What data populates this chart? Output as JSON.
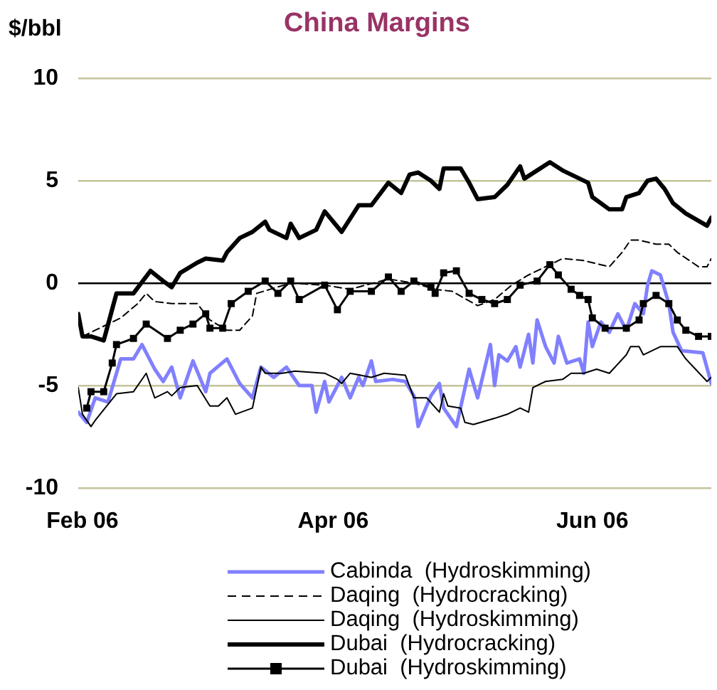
{
  "chart_data": {
    "type": "line",
    "title": "China Margins",
    "ylabel": "$/bbl",
    "xlim": [
      "2006-01-31",
      "2006-06-29"
    ],
    "xticks": [
      {
        "value": "2006-02-01",
        "label": "Feb 06"
      },
      {
        "value": "2006-04-01",
        "label": "Apr 06"
      },
      {
        "value": "2006-06-01",
        "label": "Jun 06"
      }
    ],
    "ylim": [
      -10,
      10
    ],
    "yticks": [
      -10,
      -5,
      0,
      5,
      10
    ],
    "grid": "y",
    "legend": "bottom",
    "series": [
      {
        "name": "Cabinda  (Hydroskimming)",
        "color": "#8080ff",
        "marker": "none",
        "line_style": "solid",
        "x": [
          "2006-01-31",
          "2006-02-02",
          "2006-02-04",
          "2006-02-07",
          "2006-02-10",
          "2006-02-13",
          "2006-02-15",
          "2006-02-18",
          "2006-02-20",
          "2006-02-22",
          "2006-02-24",
          "2006-02-27",
          "2006-03-02",
          "2006-03-03",
          "2006-03-07",
          "2006-03-10",
          "2006-03-13",
          "2006-03-15",
          "2006-03-18",
          "2006-03-21",
          "2006-03-24",
          "2006-03-27",
          "2006-03-28",
          "2006-03-30",
          "2006-03-31",
          "2006-04-03",
          "2006-04-05",
          "2006-04-07",
          "2006-04-08",
          "2006-04-10",
          "2006-04-11",
          "2006-04-15",
          "2006-04-18",
          "2006-04-20",
          "2006-04-21",
          "2006-04-24",
          "2006-04-26",
          "2006-04-27",
          "2006-04-30",
          "2006-05-03",
          "2006-05-05",
          "2006-05-08",
          "2006-05-09",
          "2006-05-10",
          "2006-05-12",
          "2006-05-14",
          "2006-05-15",
          "2006-05-17",
          "2006-05-18",
          "2006-05-19",
          "2006-05-21",
          "2006-05-23",
          "2006-05-24",
          "2006-05-26",
          "2006-05-29",
          "2006-05-30",
          "2006-05-31",
          "2006-06-01",
          "2006-06-03",
          "2006-06-05",
          "2006-06-07",
          "2006-06-09",
          "2006-06-11",
          "2006-06-13",
          "2006-06-14",
          "2006-06-15",
          "2006-06-17",
          "2006-06-19",
          "2006-06-20",
          "2006-06-22",
          "2006-06-27",
          "2006-06-29"
        ],
        "values": [
          -6.3,
          -6.8,
          -5.6,
          -5.8,
          -3.7,
          -3.7,
          -3.0,
          -4.2,
          -4.8,
          -4.1,
          -5.6,
          -3.8,
          -5.3,
          -4.4,
          -3.7,
          -4.9,
          -5.6,
          -4.1,
          -4.6,
          -4.1,
          -5.0,
          -5.0,
          -6.3,
          -4.8,
          -5.8,
          -4.6,
          -5.6,
          -4.6,
          -5.0,
          -3.8,
          -4.8,
          -4.7,
          -4.8,
          -5.5,
          -7.0,
          -5.5,
          -4.9,
          -6.1,
          -7.0,
          -4.2,
          -5.6,
          -3.0,
          -5.0,
          -3.5,
          -3.8,
          -3.1,
          -4.1,
          -2.5,
          -3.9,
          -1.8,
          -3.1,
          -3.9,
          -2.6,
          -3.9,
          -3.7,
          -4.4,
          -1.9,
          -3.1,
          -1.9,
          -2.4,
          -1.5,
          -2.3,
          -1.0,
          -1.5,
          -0.1,
          0.6,
          0.4,
          -1.0,
          -2.4,
          -3.3,
          -3.4,
          -4.9
        ]
      },
      {
        "name": "Daqing  (Hydrocracking)",
        "color": "#000000",
        "marker": "none",
        "line_style": "dashed",
        "x": [
          "2006-02-01",
          "2006-02-10",
          "2006-02-14",
          "2006-02-16",
          "2006-02-18",
          "2006-02-22",
          "2006-02-28",
          "2006-03-03",
          "2006-03-07",
          "2006-03-10",
          "2006-03-13",
          "2006-03-14",
          "2006-03-22",
          "2006-03-30",
          "2006-04-05",
          "2006-04-14",
          "2006-04-20",
          "2006-04-25",
          "2006-04-29",
          "2006-05-05",
          "2006-05-09",
          "2006-05-13",
          "2006-05-17",
          "2006-05-21",
          "2006-05-25",
          "2006-05-30",
          "2006-06-01",
          "2006-06-05",
          "2006-06-08",
          "2006-06-10",
          "2006-06-12",
          "2006-06-16",
          "2006-06-19",
          "2006-06-21",
          "2006-06-26",
          "2006-06-28",
          "2006-06-29"
        ],
        "values": [
          -2.6,
          -1.7,
          -1.0,
          -0.5,
          -0.9,
          -1.0,
          -1.0,
          -1.8,
          -2.3,
          -2.3,
          -1.6,
          -0.5,
          0.0,
          -0.1,
          -0.3,
          0.2,
          0.0,
          -0.3,
          -0.4,
          -1.1,
          -0.8,
          -0.1,
          0.4,
          0.8,
          1.2,
          1.1,
          1.0,
          0.8,
          1.5,
          2.1,
          2.1,
          1.9,
          1.9,
          1.5,
          0.8,
          0.8,
          1.2
        ]
      },
      {
        "name": "Daqing  (Hydroskimming)",
        "color": "#000000",
        "marker": "none",
        "line_style": "solid",
        "x": [
          "2006-01-31",
          "2006-02-01",
          "2006-02-03",
          "2006-02-04",
          "2006-02-09",
          "2006-02-13",
          "2006-02-16",
          "2006-02-18",
          "2006-02-21",
          "2006-02-22",
          "2006-02-24",
          "2006-02-28",
          "2006-03-03",
          "2006-03-05",
          "2006-03-07",
          "2006-03-09",
          "2006-03-13",
          "2006-03-15",
          "2006-03-16",
          "2006-03-20",
          "2006-03-23",
          "2006-03-30",
          "2006-04-02",
          "2006-04-03",
          "2006-04-05",
          "2006-04-10",
          "2006-04-13",
          "2006-04-18",
          "2006-04-20",
          "2006-04-23",
          "2006-04-26",
          "2006-04-27",
          "2006-04-28",
          "2006-05-01",
          "2006-05-02",
          "2006-05-04",
          "2006-05-09",
          "2006-05-12",
          "2006-05-15",
          "2006-05-17",
          "2006-05-18",
          "2006-05-21",
          "2006-05-25",
          "2006-05-27",
          "2006-05-30",
          "2006-06-02",
          "2006-06-05",
          "2006-06-09",
          "2006-06-10",
          "2006-06-12",
          "2006-06-13",
          "2006-06-17",
          "2006-06-21",
          "2006-06-23",
          "2006-06-28",
          "2006-06-29"
        ],
        "values": [
          -5.1,
          -6.4,
          -7.0,
          -6.7,
          -5.4,
          -5.3,
          -4.4,
          -5.6,
          -5.3,
          -5.5,
          -5.1,
          -5.0,
          -6.0,
          -6.0,
          -5.6,
          -6.4,
          -6.1,
          -4.1,
          -4.4,
          -4.4,
          -4.3,
          -4.4,
          -4.7,
          -4.9,
          -4.4,
          -4.6,
          -4.4,
          -4.5,
          -5.6,
          -5.6,
          -6.3,
          -5.4,
          -6.0,
          -6.1,
          -6.8,
          -6.9,
          -6.6,
          -6.4,
          -6.1,
          -6.3,
          -5.1,
          -4.8,
          -4.7,
          -4.4,
          -4.4,
          -4.2,
          -4.4,
          -3.5,
          -3.1,
          -3.1,
          -3.5,
          -3.1,
          -3.1,
          -3.7,
          -4.8,
          -4.6
        ]
      },
      {
        "name": "Dubai  (Hydrocracking)",
        "color": "#000000",
        "marker": "none",
        "line_style": "solid",
        "x": [
          "2006-01-31",
          "2006-02-01",
          "2006-02-03",
          "2006-02-06",
          "2006-02-09",
          "2006-02-13",
          "2006-02-17",
          "2006-02-20",
          "2006-02-22",
          "2006-02-24",
          "2006-02-28",
          "2006-03-02",
          "2006-03-06",
          "2006-03-07",
          "2006-03-10",
          "2006-03-13",
          "2006-03-16",
          "2006-03-17",
          "2006-03-21",
          "2006-03-22",
          "2006-03-24",
          "2006-03-28",
          "2006-03-30",
          "2006-04-03",
          "2006-04-07",
          "2006-04-10",
          "2006-04-14",
          "2006-04-17",
          "2006-04-19",
          "2006-04-21",
          "2006-04-24",
          "2006-04-26",
          "2006-04-27",
          "2006-05-01",
          "2006-05-03",
          "2006-05-05",
          "2006-05-09",
          "2006-05-12",
          "2006-05-15",
          "2006-05-16",
          "2006-05-22",
          "2006-05-25",
          "2006-05-29",
          "2006-05-31",
          "2006-06-01",
          "2006-06-05",
          "2006-06-08",
          "2006-06-09",
          "2006-06-12",
          "2006-06-14",
          "2006-06-16",
          "2006-06-18",
          "2006-06-20",
          "2006-06-23",
          "2006-06-28",
          "2006-06-29"
        ],
        "values": [
          -1.5,
          -2.6,
          -2.6,
          -2.8,
          -0.5,
          -0.5,
          0.6,
          0.1,
          -0.2,
          0.5,
          1.0,
          1.2,
          1.1,
          1.5,
          2.2,
          2.5,
          3.0,
          2.6,
          2.2,
          2.9,
          2.2,
          2.6,
          3.5,
          2.5,
          3.8,
          3.8,
          4.9,
          4.4,
          5.3,
          5.4,
          5.0,
          4.6,
          5.6,
          5.6,
          4.9,
          4.1,
          4.2,
          4.8,
          5.7,
          5.1,
          5.9,
          5.5,
          5.1,
          4.9,
          4.2,
          3.6,
          3.6,
          4.2,
          4.4,
          5.0,
          5.1,
          4.6,
          3.9,
          3.4,
          2.8,
          3.2
        ]
      },
      {
        "name": "Dubai  (Hydroskimming)",
        "color": "#000000",
        "marker": "square",
        "line_style": "solid",
        "x": [
          "2006-02-02",
          "2006-02-03",
          "2006-02-06",
          "2006-02-08",
          "2006-02-09",
          "2006-02-13",
          "2006-02-16",
          "2006-02-21",
          "2006-02-24",
          "2006-02-27",
          "2006-03-02",
          "2006-03-03",
          "2006-03-06",
          "2006-03-08",
          "2006-03-12",
          "2006-03-16",
          "2006-03-19",
          "2006-03-22",
          "2006-03-24",
          "2006-03-30",
          "2006-04-02",
          "2006-04-05",
          "2006-04-10",
          "2006-04-14",
          "2006-04-17",
          "2006-04-20",
          "2006-04-24",
          "2006-04-25",
          "2006-04-27",
          "2006-04-30",
          "2006-05-03",
          "2006-05-06",
          "2006-05-09",
          "2006-05-12",
          "2006-05-15",
          "2006-05-19",
          "2006-05-22",
          "2006-05-24",
          "2006-05-27",
          "2006-05-29",
          "2006-05-31",
          "2006-06-01",
          "2006-06-04",
          "2006-06-09",
          "2006-06-12",
          "2006-06-13",
          "2006-06-16",
          "2006-06-19",
          "2006-06-21",
          "2006-06-23",
          "2006-06-26",
          "2006-06-29"
        ],
        "values": [
          -6.1,
          -5.3,
          -5.3,
          -3.9,
          -3.0,
          -2.7,
          -2.0,
          -2.7,
          -2.3,
          -2.0,
          -1.5,
          -2.2,
          -2.2,
          -1.0,
          -0.4,
          0.1,
          -0.5,
          0.1,
          -0.8,
          -0.1,
          -1.3,
          -0.4,
          -0.4,
          0.3,
          -0.4,
          0.1,
          -0.2,
          -0.5,
          0.5,
          0.6,
          -0.5,
          -0.8,
          -1.0,
          -0.8,
          -0.1,
          0.1,
          0.9,
          0.4,
          -0.3,
          -0.6,
          -0.8,
          -1.7,
          -2.2,
          -2.2,
          -1.8,
          -1.0,
          -0.6,
          -1.0,
          -1.8,
          -2.3,
          -2.6,
          -2.6
        ]
      }
    ]
  }
}
